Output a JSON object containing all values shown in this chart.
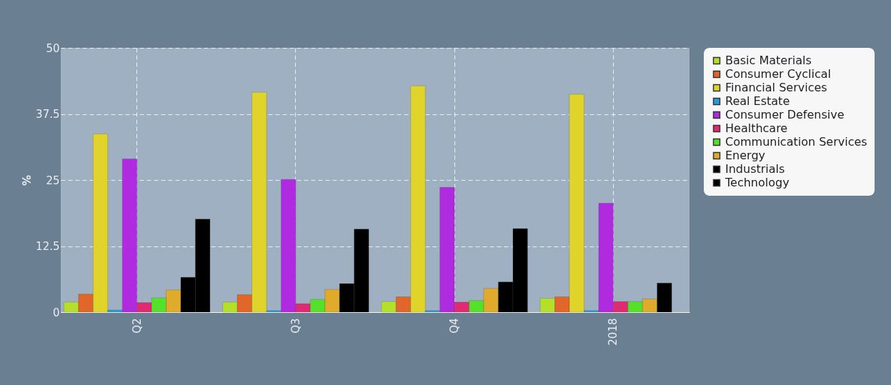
{
  "chart_data": {
    "type": "bar",
    "ylabel": "%",
    "categories": [
      "Q2",
      "Q3",
      "Q4",
      "2018"
    ],
    "ylim": [
      0,
      50
    ],
    "yticks": [
      0,
      12.5,
      25,
      37.5,
      50
    ],
    "grid": true,
    "legend": "top right",
    "series": [
      {
        "name": "Basic Materials",
        "color": "#b5e02a",
        "values": [
          1.9,
          1.9,
          2.0,
          2.6
        ]
      },
      {
        "name": "Consumer Cyclical",
        "color": "#e0662a",
        "values": [
          3.4,
          3.3,
          2.9,
          2.9
        ]
      },
      {
        "name": "Financial Services",
        "color": "#e0d42a",
        "values": [
          33.7,
          41.6,
          42.8,
          41.2
        ]
      },
      {
        "name": "Real Estate",
        "color": "#2a9ae0",
        "values": [
          0.4,
          0.3,
          0.3,
          0.3
        ]
      },
      {
        "name": "Consumer Defensive",
        "color": "#b02ae0",
        "values": [
          29.0,
          25.1,
          23.6,
          20.6
        ]
      },
      {
        "name": "Healthcare",
        "color": "#e02a72",
        "values": [
          1.8,
          1.6,
          1.9,
          2.0
        ]
      },
      {
        "name": "Communication Services",
        "color": "#55e02a",
        "values": [
          2.7,
          2.4,
          2.2,
          2.0
        ]
      },
      {
        "name": "Energy",
        "color": "#e0aa2a",
        "values": [
          4.2,
          4.3,
          4.5,
          2.5
        ]
      },
      {
        "name": "Industrials",
        "color": "#000000",
        "values": [
          6.6,
          5.4,
          5.7,
          5.5
        ]
      },
      {
        "name": "Technology",
        "color": "#000000",
        "values": [
          17.6,
          15.7,
          15.8,
          null
        ]
      }
    ]
  }
}
